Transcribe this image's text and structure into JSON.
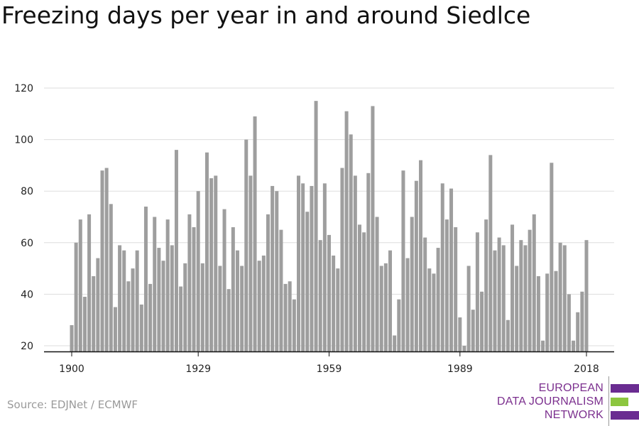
{
  "chart_data": {
    "type": "bar",
    "title": "Freezing days per year in and around Siedlce",
    "xlabel": "",
    "ylabel": "",
    "x_ticks": [
      "1900",
      "1929",
      "1959",
      "1989",
      "2018"
    ],
    "y_ticks": [
      20,
      40,
      60,
      80,
      100,
      120
    ],
    "ylim": [
      18,
      122
    ],
    "grid": "horizontal",
    "bar_color": "#9e9e9e",
    "start_year": 1900,
    "values": [
      28,
      60,
      69,
      39,
      71,
      47,
      54,
      88,
      89,
      75,
      35,
      59,
      57,
      45,
      50,
      57,
      36,
      74,
      44,
      70,
      58,
      53,
      69,
      59,
      96,
      43,
      52,
      71,
      66,
      80,
      52,
      95,
      85,
      86,
      51,
      73,
      42,
      66,
      57,
      51,
      100,
      86,
      109,
      53,
      55,
      71,
      82,
      80,
      65,
      44,
      45,
      38,
      86,
      83,
      72,
      82,
      115,
      61,
      83,
      63,
      55,
      50,
      89,
      111,
      102,
      86,
      67,
      64,
      87,
      113,
      70,
      51,
      52,
      57,
      24,
      38,
      88,
      54,
      70,
      84,
      92,
      62,
      50,
      48,
      58,
      83,
      69,
      81,
      66,
      31,
      20,
      51,
      34,
      64,
      41,
      69,
      94,
      57,
      62,
      59,
      30,
      67,
      51,
      61,
      59,
      65,
      71,
      47,
      22,
      48,
      91,
      49,
      60,
      59,
      40,
      22,
      33,
      41,
      61
    ]
  },
  "source": "Source: EDJNet / ECMWF",
  "logo": {
    "lines": [
      "EUROPEAN",
      "DATA JOURNALISM",
      "NETWORK"
    ],
    "bar_colors": [
      "#6a2c91",
      "#8cc63f",
      "#6a2c91"
    ]
  }
}
